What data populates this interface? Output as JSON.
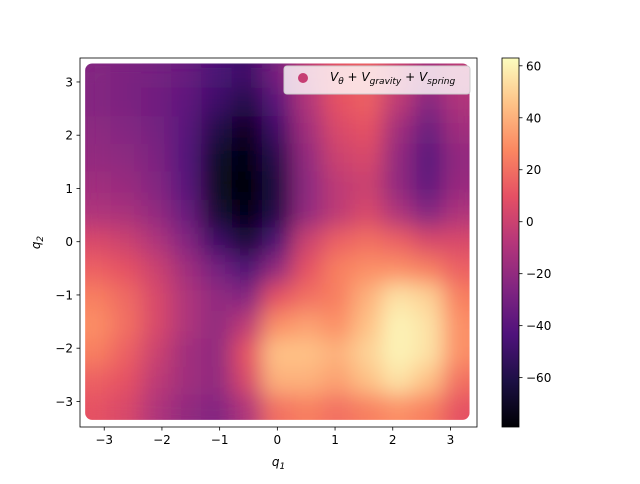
{
  "chart_data": {
    "type": "scatter",
    "xlabel_parts": [
      "q",
      "1"
    ],
    "ylabel_parts": [
      "q",
      "2"
    ],
    "legend_parts": [
      "V",
      "θ",
      " + V",
      "gravity",
      " + V",
      "spring"
    ],
    "legend_loc": "upper right",
    "legend_marker_color": "#c63d73",
    "colormap_colors": [
      "#000004",
      "#1c1044",
      "#4f127b",
      "#812581",
      "#b5367a",
      "#e55064",
      "#fb8761",
      "#fec287",
      "#fcfdbf"
    ],
    "clim": [
      -79,
      63
    ],
    "cticks": [
      {
        "value": -60,
        "label": "−60"
      },
      {
        "value": -40,
        "label": "−40"
      },
      {
        "value": -20,
        "label": "−20"
      },
      0,
      20,
      40,
      60
    ],
    "xlim": [
      -3.42,
      3.46
    ],
    "ylim": [
      -3.48,
      3.45
    ],
    "xticks": [
      {
        "value": -3,
        "label": "−3"
      },
      {
        "value": -2,
        "label": "−2"
      },
      {
        "value": -1,
        "label": "−1"
      },
      0,
      1,
      2,
      3
    ],
    "yticks": [
      {
        "value": -3,
        "label": "−3"
      },
      {
        "value": -2,
        "label": "−2"
      },
      {
        "value": -1,
        "label": "−1"
      },
      0,
      1,
      2,
      3
    ],
    "x": [
      -3.14,
      -2.62,
      -2.09,
      -1.57,
      -1.05,
      -0.52,
      0,
      0.52,
      1.05,
      1.57,
      2.09,
      2.62,
      3.14
    ],
    "y": [
      3.14,
      2.62,
      2.09,
      1.57,
      1.05,
      0.52,
      0,
      -0.52,
      -1.05,
      -1.57,
      -2.09,
      -2.62,
      -3.14
    ],
    "z": [
      [
        -25,
        -28,
        -30,
        -35,
        -45,
        -50,
        -30,
        -5,
        10,
        15,
        0,
        -15,
        -5
      ],
      [
        -25,
        -28,
        -32,
        -38,
        -50,
        -60,
        -40,
        -10,
        10,
        15,
        -5,
        -25,
        -10
      ],
      [
        -22,
        -25,
        -30,
        -40,
        -60,
        -72,
        -50,
        -15,
        5,
        10,
        -15,
        -35,
        -15
      ],
      [
        -20,
        -22,
        -28,
        -42,
        -68,
        -78,
        -58,
        -20,
        0,
        5,
        -20,
        -40,
        -20
      ],
      [
        -15,
        -18,
        -25,
        -40,
        -70,
        -79,
        -62,
        -22,
        -5,
        0,
        -20,
        -38,
        -18
      ],
      [
        -10,
        -12,
        -20,
        -35,
        -65,
        -78,
        -60,
        -20,
        -5,
        5,
        -10,
        -25,
        -10
      ],
      [
        5,
        0,
        -10,
        -25,
        -50,
        -65,
        -45,
        0,
        15,
        20,
        15,
        5,
        5
      ],
      [
        15,
        10,
        0,
        -15,
        -30,
        -45,
        -20,
        10,
        25,
        30,
        30,
        25,
        15
      ],
      [
        25,
        18,
        5,
        -10,
        -20,
        -25,
        10,
        20,
        25,
        40,
        55,
        50,
        25
      ],
      [
        30,
        20,
        5,
        -10,
        -20,
        -5,
        30,
        35,
        30,
        45,
        60,
        55,
        30
      ],
      [
        25,
        15,
        0,
        -15,
        -20,
        10,
        45,
        45,
        40,
        50,
        60,
        55,
        30
      ],
      [
        15,
        10,
        -5,
        -15,
        -20,
        5,
        40,
        40,
        35,
        45,
        55,
        45,
        20
      ],
      [
        10,
        5,
        -10,
        -20,
        -25,
        -10,
        20,
        25,
        20,
        25,
        30,
        25,
        10
      ]
    ]
  }
}
